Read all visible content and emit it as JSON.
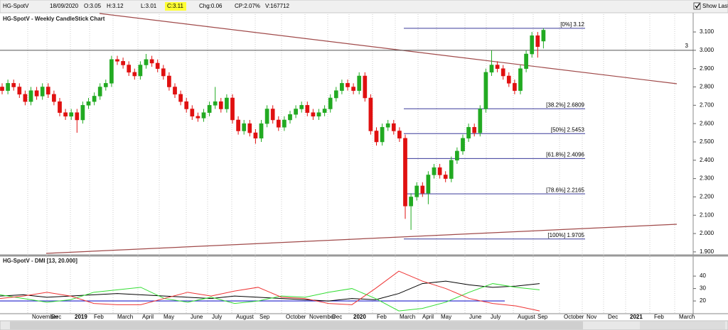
{
  "header": {
    "symbol": "HG-SpotV",
    "date": "18/09/2020",
    "open": "O:3.05",
    "high": "H:3.12",
    "low": "L:3.01",
    "close": "C:3.11",
    "change": "Chg:0.06",
    "change_percent": "CP:2.07%",
    "volume": "V:167712",
    "show_last": "Show Last"
  },
  "chart_data": [
    {
      "type": "candlestick",
      "title": "HG-SpotV - Weekly CandleStick Chart",
      "up_color": "#22aa22",
      "down_color": "#e01010",
      "open": [
        2.8,
        2.78,
        2.82,
        2.8,
        2.76,
        2.72,
        2.78,
        2.75,
        2.8,
        2.76,
        2.72,
        2.66,
        2.64,
        2.66,
        2.62,
        2.7,
        2.72,
        2.75,
        2.8,
        2.82,
        2.95,
        2.94,
        2.92,
        2.88,
        2.86,
        2.92,
        2.95,
        2.93,
        2.9,
        2.86,
        2.8,
        2.76,
        2.72,
        2.68,
        2.64,
        2.63,
        2.66,
        2.7,
        2.72,
        2.68,
        2.74,
        2.62,
        2.56,
        2.6,
        2.55,
        2.52,
        2.6,
        2.68,
        2.62,
        2.58,
        2.62,
        2.65,
        2.68,
        2.7,
        2.66,
        2.64,
        2.66,
        2.68,
        2.74,
        2.78,
        2.82,
        2.8,
        2.78,
        2.86,
        2.74,
        2.56,
        2.5,
        2.58,
        2.6,
        2.56,
        2.52,
        2.15,
        2.2,
        2.26,
        2.22,
        2.32,
        2.36,
        2.32,
        2.3,
        2.4,
        2.45,
        2.52,
        2.58,
        2.55,
        2.68,
        2.88,
        2.92,
        2.9,
        2.86,
        2.82,
        2.78,
        2.9,
        2.98,
        3.08,
        3.05
      ],
      "high": [
        2.82,
        2.84,
        2.84,
        2.82,
        2.78,
        2.8,
        2.8,
        2.82,
        2.82,
        2.78,
        2.74,
        2.68,
        2.68,
        2.68,
        2.72,
        2.74,
        2.77,
        2.82,
        2.84,
        2.97,
        2.97,
        2.96,
        2.94,
        2.9,
        2.94,
        2.98,
        2.97,
        2.95,
        2.92,
        2.88,
        2.82,
        2.78,
        2.74,
        2.7,
        2.66,
        2.68,
        2.72,
        2.8,
        2.74,
        2.76,
        2.76,
        2.64,
        2.62,
        2.62,
        2.57,
        2.62,
        2.7,
        2.7,
        2.64,
        2.64,
        2.67,
        2.7,
        2.72,
        2.72,
        2.68,
        2.68,
        2.7,
        2.76,
        2.8,
        2.84,
        2.84,
        2.82,
        2.88,
        2.88,
        2.76,
        2.58,
        2.6,
        2.62,
        2.62,
        2.58,
        2.54,
        2.22,
        2.28,
        2.28,
        2.34,
        2.38,
        2.38,
        2.34,
        2.42,
        2.47,
        2.54,
        2.6,
        2.6,
        2.7,
        2.9,
        3.0,
        2.94,
        2.92,
        2.88,
        2.84,
        2.92,
        3.0,
        3.1,
        3.1,
        3.12
      ],
      "low": [
        2.76,
        2.76,
        2.78,
        2.74,
        2.7,
        2.7,
        2.73,
        2.73,
        2.74,
        2.7,
        2.64,
        2.62,
        2.62,
        2.55,
        2.6,
        2.68,
        2.7,
        2.73,
        2.78,
        2.8,
        2.92,
        2.9,
        2.86,
        2.84,
        2.84,
        2.9,
        2.91,
        2.88,
        2.84,
        2.78,
        2.74,
        2.7,
        2.66,
        2.62,
        2.61,
        2.61,
        2.64,
        2.68,
        2.66,
        2.66,
        2.6,
        2.54,
        2.54,
        2.53,
        2.49,
        2.5,
        2.58,
        2.6,
        2.56,
        2.56,
        2.6,
        2.63,
        2.66,
        2.64,
        2.62,
        2.62,
        2.64,
        2.66,
        2.72,
        2.76,
        2.78,
        2.76,
        2.76,
        2.72,
        2.54,
        2.48,
        2.48,
        2.56,
        2.54,
        2.5,
        2.08,
        2.02,
        2.18,
        2.2,
        2.16,
        2.3,
        2.3,
        2.28,
        2.28,
        2.38,
        2.43,
        2.5,
        2.53,
        2.53,
        2.66,
        2.86,
        2.88,
        2.84,
        2.8,
        2.76,
        2.76,
        2.88,
        2.96,
        2.96,
        3.01
      ],
      "close": [
        2.78,
        2.82,
        2.8,
        2.76,
        2.72,
        2.78,
        2.75,
        2.8,
        2.76,
        2.72,
        2.66,
        2.64,
        2.66,
        2.62,
        2.7,
        2.72,
        2.75,
        2.8,
        2.82,
        2.95,
        2.94,
        2.92,
        2.88,
        2.86,
        2.92,
        2.95,
        2.93,
        2.9,
        2.86,
        2.8,
        2.76,
        2.72,
        2.68,
        2.64,
        2.63,
        2.66,
        2.7,
        2.72,
        2.68,
        2.74,
        2.62,
        2.56,
        2.6,
        2.55,
        2.52,
        2.6,
        2.68,
        2.62,
        2.58,
        2.62,
        2.65,
        2.68,
        2.7,
        2.66,
        2.64,
        2.66,
        2.68,
        2.74,
        2.78,
        2.82,
        2.8,
        2.78,
        2.86,
        2.74,
        2.56,
        2.5,
        2.58,
        2.6,
        2.56,
        2.52,
        2.15,
        2.2,
        2.26,
        2.22,
        2.32,
        2.36,
        2.32,
        2.3,
        2.4,
        2.45,
        2.52,
        2.58,
        2.55,
        2.68,
        2.88,
        2.92,
        2.9,
        2.86,
        2.82,
        2.78,
        2.9,
        2.98,
        3.08,
        3.02,
        3.11
      ],
      "ylim": [
        1.888,
        3.197
      ],
      "yticks": [
        {
          "value": 1.9,
          "label": "1.900"
        },
        {
          "value": 2.0,
          "label": "2.000"
        },
        {
          "value": 2.1,
          "label": "2.100"
        },
        {
          "value": 2.2,
          "label": "2.200"
        },
        {
          "value": 2.3,
          "label": "2.300"
        },
        {
          "value": 2.4,
          "label": "2.400"
        },
        {
          "value": 2.5,
          "label": "2.500"
        },
        {
          "value": 2.6,
          "label": "2.600"
        },
        {
          "value": 2.7,
          "label": "2.700"
        },
        {
          "value": 2.8,
          "label": "2.800"
        },
        {
          "value": 2.9,
          "label": "2.900"
        },
        {
          "value": 3.0,
          "label": "3.000"
        },
        {
          "value": 3.1,
          "label": "3.100"
        }
      ],
      "hline": 3,
      "fib_levels": [
        {
          "label": "[0%] 3.12",
          "value": 3.12
        },
        {
          "label": "[38.2%] 2.6809",
          "value": 2.6809
        },
        {
          "label": "[50%] 2.5453",
          "value": 2.5453
        },
        {
          "label": "[61.8%] 2.4096",
          "value": 2.4096
        },
        {
          "label": "[78.6%] 2.2165",
          "value": 2.2165
        },
        {
          "label": "[100%] 1.9705",
          "value": 1.9705
        }
      ]
    },
    {
      "type": "line",
      "title": "HG-SpotV - DMI [13, 20.000]",
      "series": [
        {
          "color": "#000000",
          "values": [
            24,
            25,
            23,
            24,
            25,
            26,
            25,
            24,
            23,
            22,
            24,
            23,
            22,
            21,
            20,
            22,
            21,
            26,
            34,
            36,
            33,
            31,
            32,
            34
          ]
        },
        {
          "color": "#33dd33",
          "values": [
            25,
            22,
            19,
            21,
            27,
            29,
            31,
            22,
            19,
            23,
            18,
            20,
            24,
            23,
            27,
            30,
            22,
            12,
            14,
            19,
            27,
            34,
            31,
            29
          ]
        },
        {
          "color": "#ee3333",
          "values": [
            22,
            24,
            27,
            24,
            18,
            17,
            17,
            22,
            27,
            24,
            28,
            31,
            23,
            22,
            18,
            17,
            30,
            44,
            36,
            30,
            22,
            18,
            16,
            12
          ]
        }
      ],
      "reference_line": 20,
      "ylim": [
        10.9,
        54.9
      ],
      "yticks": [
        20,
        30,
        40
      ],
      "x_labels": [
        "November",
        "Dec",
        "2019",
        "Feb",
        "March",
        "April",
        "May",
        "June",
        "July",
        "August",
        "Sep",
        "October",
        "November",
        "Dec",
        "2020",
        "Feb",
        "March",
        "April",
        "May",
        "June",
        "July",
        "August",
        "Sep",
        "October",
        "Nov",
        "Dec",
        "2021",
        "Feb",
        "March"
      ]
    }
  ]
}
